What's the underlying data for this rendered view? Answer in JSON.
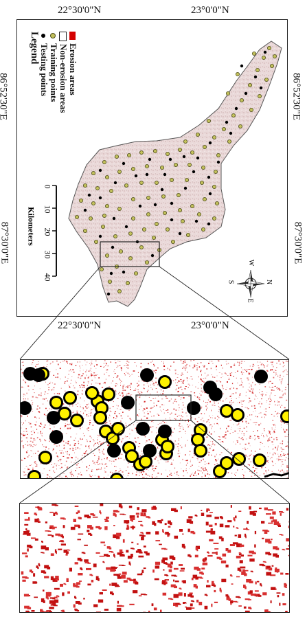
{
  "map": {
    "top_lat_labels": [
      "22°30'0\"N",
      "23°0'0\"N"
    ],
    "bottom_lat_labels": [
      "22°30'0\"N",
      "23°0'0\"N"
    ],
    "left_lon_labels": [
      "86°52'30\"E",
      "87°30'0\"E"
    ],
    "right_lon_labels": [
      "86°52'30\"E",
      "87°30'0\"E"
    ]
  },
  "legend": {
    "title": "Legend",
    "items": [
      {
        "label": "Testing points",
        "symbol": "black-dot",
        "color": "#000000"
      },
      {
        "label": "Training points",
        "symbol": "olive-dot",
        "color": "#b5b56a"
      },
      {
        "label": "Non-erosion areas",
        "symbol": "hollow-square",
        "color": "#ffffff"
      },
      {
        "label": "Erosion areas",
        "symbol": "red-square",
        "color": "#d40000"
      }
    ]
  },
  "scale_bar": {
    "ticks": [
      "0",
      "10",
      "20",
      "30",
      "40"
    ],
    "unit": "Kilometers"
  },
  "north_arrow": {
    "letters": [
      "N",
      "E",
      "S",
      "W"
    ]
  },
  "colors": {
    "basin_fill": "#ead9d9",
    "erosion_red": "#cc0000",
    "training_yellow": "#fff200",
    "testing_black": "#000000"
  }
}
